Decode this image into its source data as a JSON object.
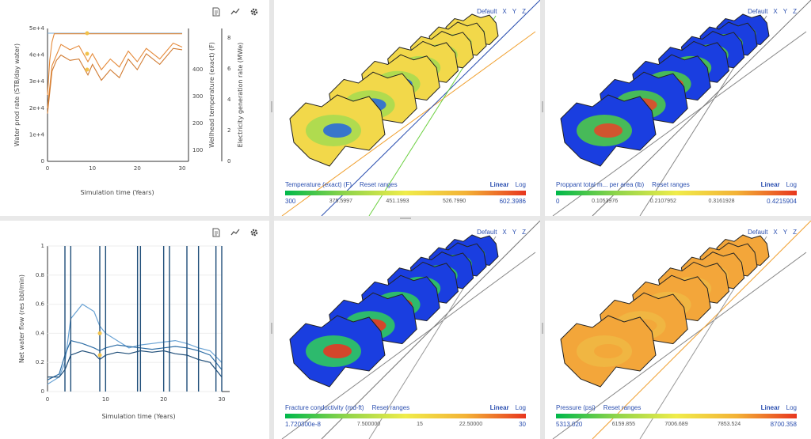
{
  "toolbar": {
    "icons": [
      "document-icon",
      "trend-icon",
      "gear-icon"
    ]
  },
  "chart_top": {
    "type": "line",
    "xlabel": "Simulation time (Years)",
    "ylabel_left": "Water prod rate (STB/day water)",
    "ylabel_right1": "Wellhead temperature (exact) (F)",
    "ylabel_right2": "Electricity generation rate (MWe)",
    "x_ticks": [
      "0",
      "10",
      "20",
      "30"
    ],
    "y_left_ticks": [
      "0",
      "1e+4",
      "2e+4",
      "3e+4",
      "4e+4",
      "5e+4"
    ],
    "y_right1_ticks": [
      "100",
      "200",
      "300",
      "400"
    ],
    "y_right2_ticks": [
      "0",
      "2",
      "4",
      "6",
      "8"
    ]
  },
  "chart_bottom": {
    "type": "line",
    "xlabel": "Simulation time (Years)",
    "ylabel": "Net water flow (res bbl/min)",
    "x_ticks": [
      "0",
      "10",
      "20",
      "30"
    ],
    "y_ticks": [
      "0",
      "0.2",
      "0.4",
      "0.6",
      "0.8",
      "1"
    ]
  },
  "chart_data": [
    {
      "type": "line",
      "xlabel": "Simulation time (Years)",
      "ylabel": "Water prod rate (STB/day water)",
      "xlim": [
        0,
        30
      ],
      "ylim": [
        0,
        50000
      ],
      "series": [
        {
          "x": [
            0,
            0.5,
            1,
            1.5,
            2,
            3,
            5,
            8,
            10,
            15,
            20,
            25,
            28,
            30
          ],
          "values": [
            25000,
            38000,
            45000,
            48000,
            48000,
            48000,
            48000,
            48000,
            48000,
            48000,
            48000,
            48000,
            48000,
            48000
          ]
        },
        {
          "x": [
            0,
            1,
            2,
            3,
            5,
            7,
            9,
            10,
            12,
            14,
            16,
            18,
            20,
            22,
            25,
            28,
            30
          ],
          "values": [
            20000,
            36000,
            40000,
            44000,
            42000,
            41000,
            40000,
            38000,
            37000,
            36000,
            38000,
            39000,
            40000,
            40000,
            41000,
            42000,
            43000
          ]
        },
        {
          "x": [
            0,
            1,
            2,
            3,
            5,
            7,
            9,
            10,
            12,
            14,
            16,
            18,
            20,
            22,
            25,
            28,
            30
          ],
          "values": [
            18000,
            34000,
            38000,
            40000,
            38000,
            36000,
            35000,
            34000,
            33000,
            32000,
            34000,
            36000,
            37000,
            38000,
            39000,
            40000,
            42000
          ]
        }
      ]
    },
    {
      "type": "line",
      "xlabel": "Simulation time (Years)",
      "ylabel": "Net water flow (res bbl/min)",
      "xlim": [
        0,
        30
      ],
      "ylim": [
        0,
        1
      ],
      "series": [
        {
          "x": [
            0,
            2,
            3,
            4,
            6,
            8,
            9,
            10,
            12,
            14,
            16,
            18,
            20,
            22,
            24,
            26,
            28,
            30
          ],
          "values": [
            0.05,
            0.1,
            0.2,
            0.5,
            0.6,
            0.55,
            0.45,
            0.4,
            0.35,
            0.3,
            0.32,
            0.33,
            0.34,
            0.35,
            0.33,
            0.3,
            0.28,
            0.2
          ]
        },
        {
          "x": [
            0,
            2,
            3,
            4,
            6,
            8,
            9,
            10,
            12,
            14,
            16,
            18,
            20,
            22,
            24,
            26,
            28,
            30
          ],
          "values": [
            0.08,
            0.12,
            0.25,
            0.35,
            0.33,
            0.3,
            0.28,
            0.3,
            0.32,
            0.31,
            0.3,
            0.29,
            0.3,
            0.31,
            0.3,
            0.28,
            0.25,
            0.15
          ]
        },
        {
          "x": [
            0,
            2,
            3,
            4,
            6,
            8,
            9,
            10,
            12,
            14,
            16,
            18,
            20,
            22,
            24,
            26,
            28,
            30
          ],
          "values": [
            0.1,
            0.1,
            0.15,
            0.25,
            0.28,
            0.26,
            0.22,
            0.25,
            0.27,
            0.26,
            0.28,
            0.27,
            0.28,
            0.26,
            0.25,
            0.22,
            0.2,
            0.1
          ]
        }
      ]
    }
  ],
  "view_tools": {
    "default": "Default",
    "x": "X",
    "y": "Y",
    "z": "Z"
  },
  "scale": {
    "linear": "Linear",
    "log": "Log"
  },
  "legends": [
    {
      "title": "Temperature (exact) (F)",
      "reset": "Reset ranges",
      "ticks": [
        "300",
        "375.5997",
        "451.1993",
        "526.7990",
        "602.3986"
      ]
    },
    {
      "title": "Proppant total m... per area (lb)",
      "reset": "Reset ranges",
      "ticks": [
        "0",
        "0.1053976",
        "0.2107952",
        "0.3161928",
        "0.4215904"
      ]
    },
    {
      "title": "Fracture conductivity (md-ft)",
      "reset": "Reset ranges",
      "ticks": [
        "1.720300e-8",
        "7.500000",
        "15",
        "22.50000",
        "30"
      ]
    },
    {
      "title": "Pressure (psi)",
      "reset": "Reset ranges",
      "ticks": [
        "5313.020",
        "6159.855",
        "7006.689",
        "7853.524",
        "8700.358"
      ]
    }
  ],
  "colors": {
    "accent": "#2b4fb0",
    "orange": "#e58a3a",
    "steelblue_dark": "#1f4e79",
    "steelblue_light": "#6aa3d4",
    "marker": "#f2c24b"
  }
}
